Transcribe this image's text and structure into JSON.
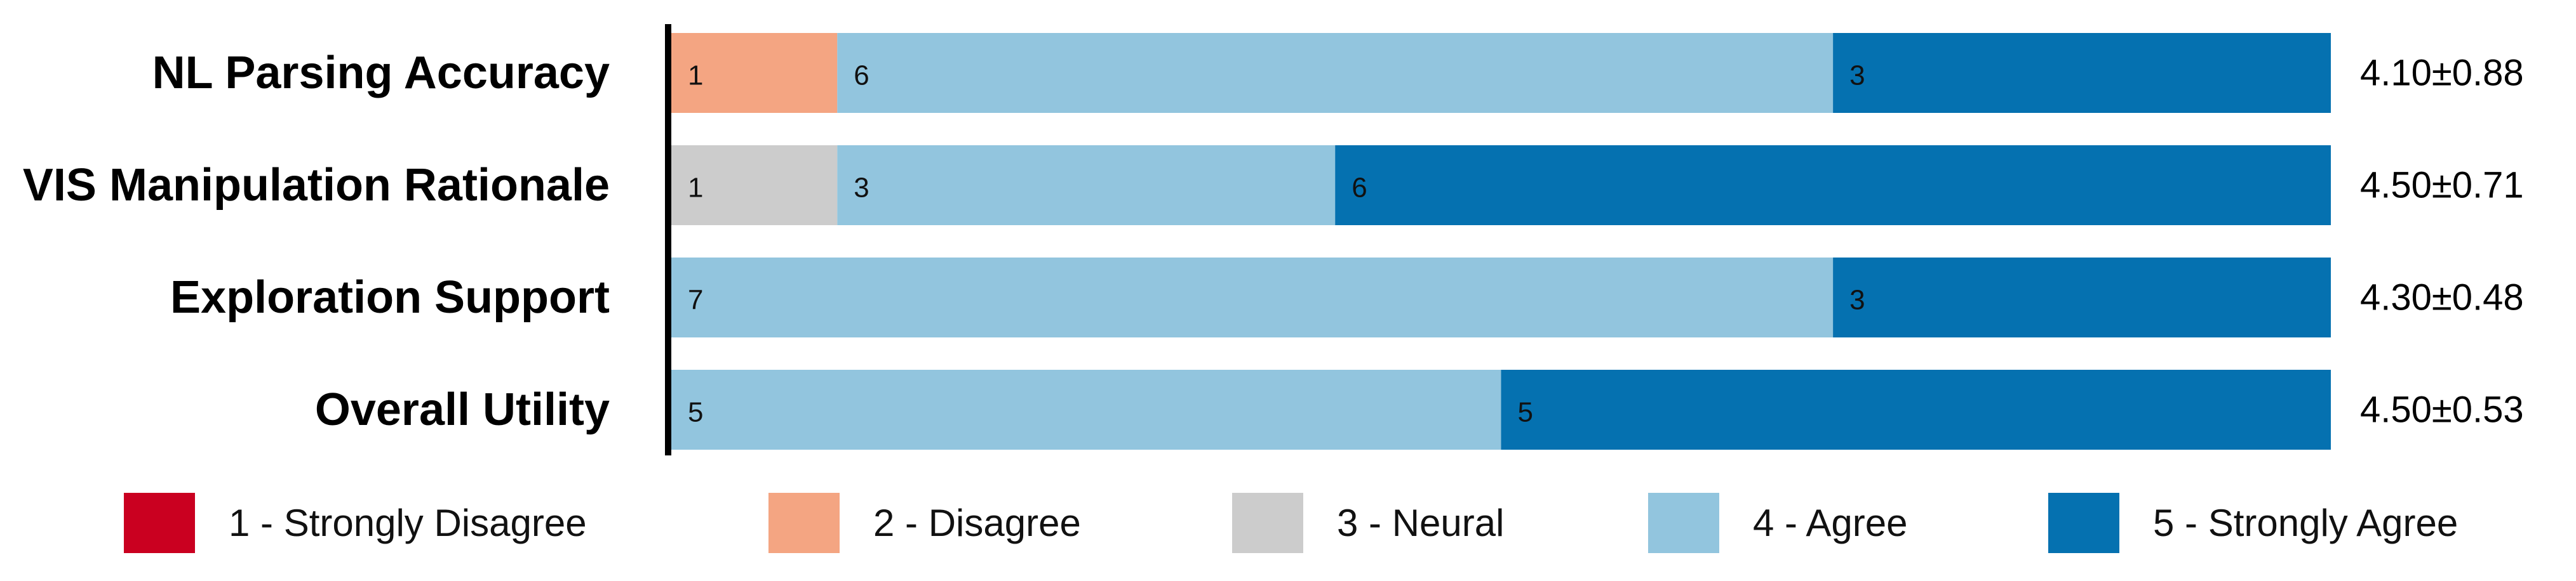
{
  "chart_data": {
    "type": "bar",
    "orientation": "horizontal",
    "stacked": true,
    "categories": [
      "NL Parsing Accuracy",
      "VIS Manipulation Rationale",
      "Exploration Support",
      "Overall Utility"
    ],
    "series": [
      {
        "name": "1 - Strongly Disagree",
        "color": "#ca0020",
        "values": [
          0,
          0,
          0,
          0
        ]
      },
      {
        "name": "2 - Disagree",
        "color": "#f4a582",
        "values": [
          1,
          0,
          0,
          0
        ]
      },
      {
        "name": "3 - Neural",
        "color": "#cccccc",
        "values": [
          0,
          1,
          0,
          0
        ]
      },
      {
        "name": "4 - Agree",
        "color": "#92c5de",
        "values": [
          6,
          3,
          7,
          5
        ]
      },
      {
        "name": "5 - Strongly Agree",
        "color": "#0571b0",
        "values": [
          3,
          6,
          3,
          5
        ]
      }
    ],
    "stats": [
      "4.10±0.88",
      "4.50±0.71",
      "4.30±0.48",
      "4.50±0.53"
    ],
    "xlim": [
      0,
      10
    ],
    "legend_position": "bottom",
    "grid": false
  }
}
